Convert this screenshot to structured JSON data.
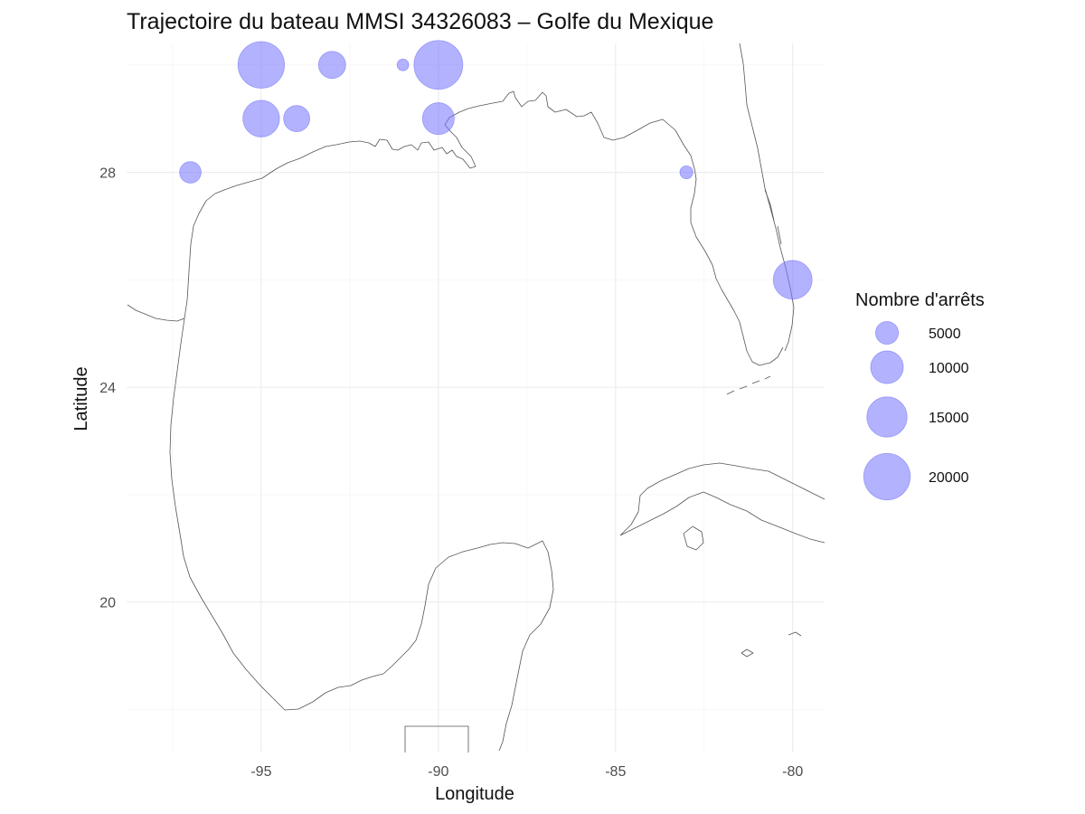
{
  "chart_data": {
    "type": "scatter",
    "title": "Trajectoire du bateau MMSI 34326083 – Golfe du Mexique",
    "xlabel": "Longitude",
    "ylabel": "Latitude",
    "xlim": [
      -98.8,
      -79.1
    ],
    "ylim": [
      17.2,
      30.4
    ],
    "x_ticks": [
      {
        "value": -95,
        "label": "-95"
      },
      {
        "value": -90,
        "label": "-90"
      },
      {
        "value": -85,
        "label": "-85"
      },
      {
        "value": -80,
        "label": "-80"
      }
    ],
    "y_ticks": [
      {
        "value": 20,
        "label": "20"
      },
      {
        "value": 24,
        "label": "24"
      },
      {
        "value": 28,
        "label": "28"
      }
    ],
    "grid": true,
    "legend": {
      "title": "Nombre d'arrêts",
      "placement": "right",
      "entries": [
        {
          "value": 5000,
          "label": "5000"
        },
        {
          "value": 10000,
          "label": "10000"
        },
        {
          "value": 15000,
          "label": "15000"
        },
        {
          "value": 20000,
          "label": "20000"
        }
      ]
    },
    "size_range_values": [
      1000,
      22000
    ],
    "bubble_color": "#7b7bff",
    "points": [
      {
        "lon": -95,
        "lat": 30,
        "stops": 20000
      },
      {
        "lon": -93,
        "lat": 30,
        "stops": 7000
      },
      {
        "lon": -91,
        "lat": 30,
        "stops": 1500
      },
      {
        "lon": -90,
        "lat": 30,
        "stops": 22000
      },
      {
        "lon": -95,
        "lat": 29,
        "stops": 12500
      },
      {
        "lon": -94,
        "lat": 29,
        "stops": 6500
      },
      {
        "lon": -90,
        "lat": 29,
        "stops": 9500
      },
      {
        "lon": -97,
        "lat": 28,
        "stops": 4500
      },
      {
        "lon": -83,
        "lat": 28,
        "stops": 1800
      },
      {
        "lon": -80,
        "lat": 26,
        "stops": 14000
      }
    ]
  }
}
